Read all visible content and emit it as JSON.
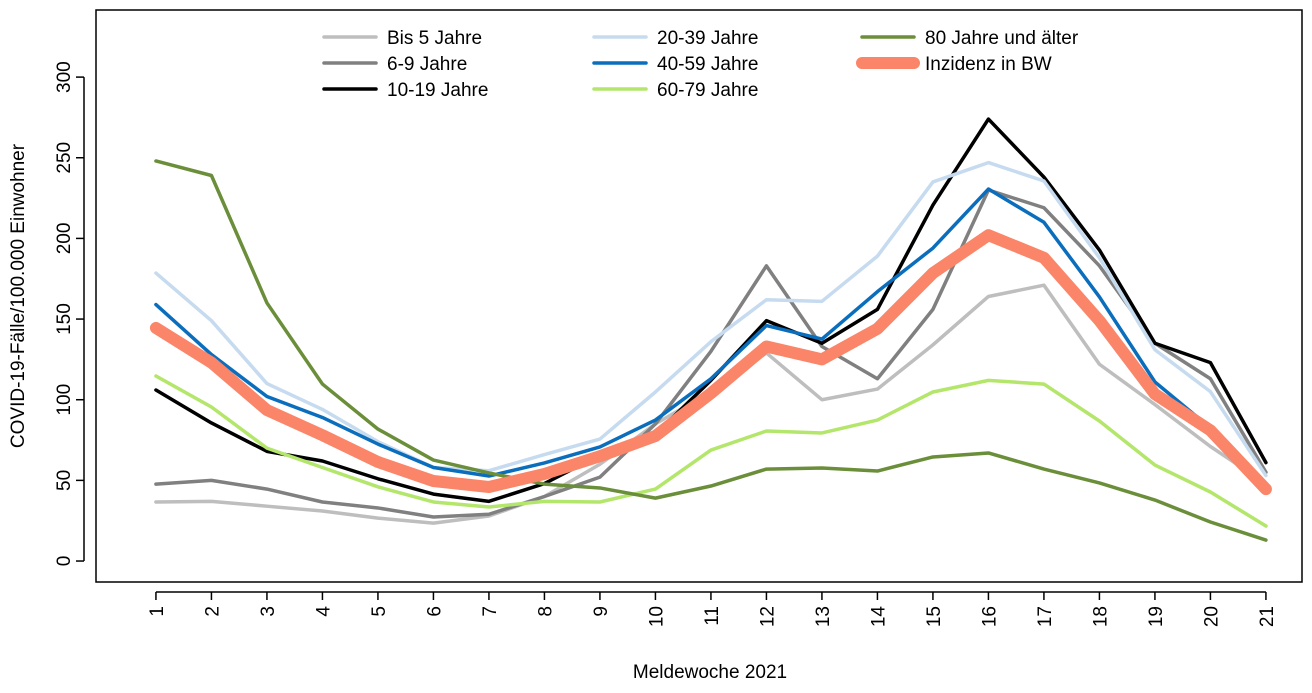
{
  "chart_data": {
    "type": "line",
    "x_label": "Meldewoche 2021",
    "y_label": "COVID-19-Fälle/100.000 Einwohner",
    "x": [
      1,
      2,
      3,
      4,
      5,
      6,
      7,
      8,
      9,
      10,
      11,
      12,
      13,
      14,
      15,
      16,
      17,
      18,
      19,
      20,
      21
    ],
    "xlim": [
      -0.08,
      21.65
    ],
    "xticks": [
      1,
      2,
      3,
      4,
      5,
      6,
      7,
      8,
      9,
      10,
      11,
      12,
      13,
      14,
      15,
      16,
      17,
      18,
      19,
      20,
      21
    ],
    "ylim": [
      -13,
      341.6
    ],
    "yticks": [
      0,
      50,
      100,
      150,
      200,
      250,
      300
    ],
    "legend": "top",
    "series": [
      {
        "name": "Bis 5 Jahre",
        "color": "#bebebe",
        "linewidth": 3.5,
        "values": [
          36.6,
          37,
          34,
          31,
          26.6,
          23.5,
          27.9,
          40,
          60,
          85,
          105,
          129,
          100,
          106.6,
          134,
          164,
          171,
          122,
          97,
          71,
          48
        ]
      },
      {
        "name": "6-9 Jahre",
        "color": "#808080",
        "linewidth": 3.5,
        "values": [
          47.7,
          50,
          44.6,
          36.6,
          32.9,
          27.3,
          29,
          40,
          52,
          85,
          130,
          183,
          133,
          113,
          156,
          230,
          219,
          183,
          135,
          113,
          55
        ]
      },
      {
        "name": "10-19 Jahre",
        "color": "#000000",
        "linewidth": 3.5,
        "values": [
          106,
          85.6,
          68,
          62,
          51,
          41.5,
          37,
          48,
          65.7,
          78.7,
          112,
          149,
          135,
          156,
          220.7,
          274,
          238,
          192.8,
          135,
          123,
          61
        ]
      },
      {
        "name": "20-39 Jahre",
        "color": "#c6dbef",
        "linewidth": 3.5,
        "values": [
          178.5,
          149,
          110,
          94,
          74,
          58,
          56,
          66,
          75.6,
          104.8,
          136,
          162,
          161,
          189,
          235,
          247,
          235.6,
          188,
          131,
          105,
          53
        ]
      },
      {
        "name": "40-59 Jahre",
        "color": "#0a6ebd",
        "linewidth": 3.5,
        "values": [
          159,
          128,
          102,
          89,
          72.5,
          58,
          52.7,
          60.8,
          70.7,
          87.4,
          113,
          146,
          137.6,
          167,
          194,
          230.6,
          210,
          163.7,
          111,
          82.5,
          47.7
        ]
      },
      {
        "name": "60-79 Jahre",
        "color": "#b3e66b",
        "linewidth": 3.5,
        "values": [
          114.7,
          95.5,
          70,
          58,
          46,
          36.6,
          33.5,
          37,
          36.6,
          44.6,
          68.8,
          80.6,
          79.4,
          87.4,
          104.8,
          112,
          109.7,
          86.8,
          59.5,
          42.8,
          21.7
        ]
      },
      {
        "name": "80 Jahre und älter",
        "color": "#6b8e3a",
        "linewidth": 3.5,
        "values": [
          248,
          239,
          160,
          109.7,
          81.8,
          62.6,
          54.6,
          47.7,
          45.3,
          39,
          46.5,
          57,
          57.7,
          55.8,
          64.5,
          67,
          57,
          48.4,
          37.8,
          24.2,
          13
        ]
      },
      {
        "name": "Inzidenz in BW",
        "color": "#fa8568",
        "linewidth": 12,
        "values": [
          144.5,
          123,
          93.6,
          78,
          61.4,
          49.6,
          45.9,
          54,
          65,
          77.5,
          104,
          133,
          125,
          144,
          178.5,
          202,
          188,
          149,
          103.5,
          81,
          44.6
        ]
      }
    ]
  }
}
